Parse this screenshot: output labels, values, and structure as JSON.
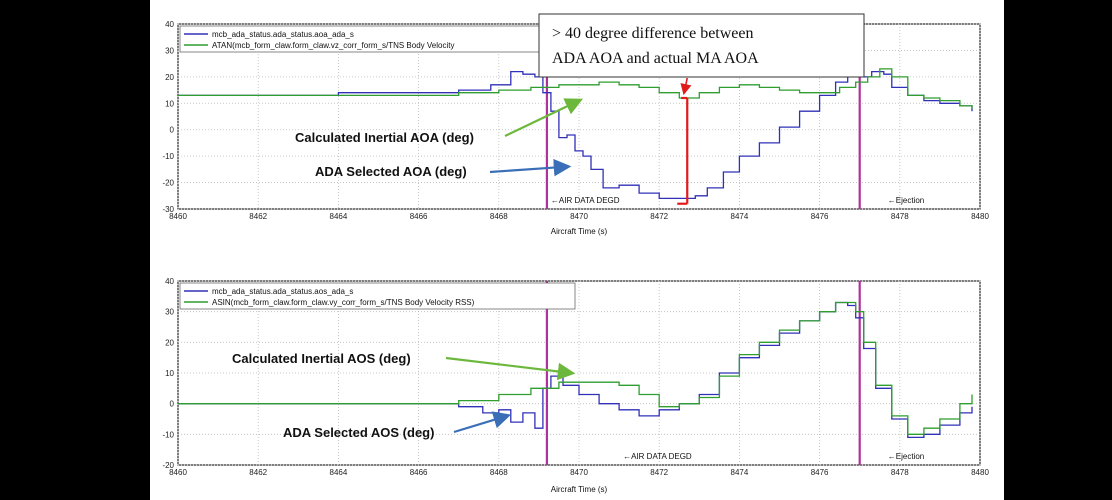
{
  "colors": {
    "ada_series": "#3030b8",
    "inertial_series": "#2f9e2f",
    "event_line": "#b0309e",
    "measure_arrow": "#e01b1b",
    "green_arrow": "#6cb83c",
    "blue_arrow": "#3a6fb8"
  },
  "callout": {
    "line1": "> 40 degree difference between",
    "line2": "ADA AOA and actual MA AOA"
  },
  "chart_data": [
    {
      "type": "line",
      "xlabel": "Aircraft Time (s)",
      "xlim": [
        8460,
        8480
      ],
      "ylim": [
        -30,
        40
      ],
      "x_ticks": [
        "8460",
        "8462",
        "8464",
        "8466",
        "8468",
        "8470",
        "8472",
        "8474",
        "8476",
        "8478",
        "8480"
      ],
      "y_ticks": [
        "40",
        "30",
        "20",
        "10",
        "0",
        "-10",
        "-20",
        "-30"
      ],
      "grid": true,
      "legend_position": "top-left",
      "event_lines": [
        8469.2,
        8477.0
      ],
      "markers": [
        {
          "x": 8469.3,
          "text": "←AIR DATA DEGD"
        },
        {
          "x": 8477.7,
          "text": "←Ejection"
        }
      ],
      "annotations": [
        {
          "text": "Calculated Inertial AOA (deg)",
          "target_x": 8470.0,
          "target_y": 11
        },
        {
          "text": "ADA Selected AOA (deg)",
          "target_x": 8469.7,
          "target_y": -14
        }
      ],
      "difference_marker": {
        "x": 8472.5,
        "y_from": 12,
        "y_to": -28
      },
      "series": [
        {
          "name": "mcb_ada_status.ada_status.aoa_ada_s",
          "x": [
            8460,
            8462,
            8464,
            8466,
            8467,
            8467.8,
            8468.3,
            8468.6,
            8468.9,
            8469.1,
            8469.3,
            8469.5,
            8469.7,
            8469.9,
            8470.1,
            8470.3,
            8470.6,
            8471,
            8471.5,
            8472,
            8472.5,
            8472.9,
            8473.2,
            8473.6,
            8474,
            8474.5,
            8475,
            8475.5,
            8476,
            8476.4,
            8476.7,
            8476.9,
            8477.3,
            8477.6,
            8477.8,
            8478.2,
            8478.6,
            8479,
            8479.5,
            8479.8
          ],
          "y": [
            13,
            13,
            14,
            14,
            15,
            17,
            22,
            21,
            20,
            14,
            7,
            -3,
            -2,
            -8,
            -10,
            -15,
            -22,
            -21,
            -24,
            -26,
            -26,
            -25,
            -22,
            -16,
            -10,
            -5,
            1,
            7,
            13,
            18,
            20,
            20,
            22,
            21,
            16,
            13,
            11,
            10,
            9,
            7
          ]
        },
        {
          "name": "ATAN(mcb_form_claw.form_claw.vz_corr_form_s/TNS Body Velocity",
          "x": [
            8460,
            8462,
            8464,
            8466,
            8467,
            8468,
            8468.8,
            8469.5,
            8470,
            8470.5,
            8471,
            8471.5,
            8472,
            8472.5,
            8473,
            8473.5,
            8474,
            8474.5,
            8475,
            8475.5,
            8476,
            8476.5,
            8476.9,
            8477.2,
            8477.5,
            8477.8,
            8478.2,
            8478.6,
            8479,
            8479.5,
            8479.8
          ],
          "y": [
            13,
            13,
            13,
            13,
            14,
            15,
            16,
            17,
            17,
            18,
            17,
            16,
            14,
            12,
            14,
            16,
            17,
            16,
            15,
            14,
            14,
            16,
            18,
            20,
            23,
            20,
            13,
            12,
            11,
            9,
            8
          ]
        }
      ]
    },
    {
      "type": "line",
      "xlabel": "Aircraft Time (s)",
      "xlim": [
        8460,
        8480
      ],
      "ylim": [
        -20,
        40
      ],
      "x_ticks": [
        "8460",
        "8462",
        "8464",
        "8466",
        "8468",
        "8470",
        "8472",
        "8474",
        "8476",
        "8478",
        "8480"
      ],
      "y_ticks": [
        "40",
        "30",
        "20",
        "10",
        "0",
        "-10",
        "-20"
      ],
      "grid": true,
      "legend_position": "top-left",
      "event_lines": [
        8469.2,
        8477.0
      ],
      "markers": [
        {
          "x": 8471.1,
          "text": "←AIR DATA DEGD"
        },
        {
          "x": 8477.7,
          "text": "←Ejection"
        }
      ],
      "annotations": [
        {
          "text": "Calculated Inertial AOS (deg)",
          "target_x": 8469.8,
          "target_y": 10
        },
        {
          "text": "ADA Selected AOS (deg)",
          "target_x": 8468.2,
          "target_y": -4
        }
      ],
      "series": [
        {
          "name": "mcb_ada_status.ada_status.aos_ada_s",
          "x": [
            8460,
            8462,
            8464,
            8466,
            8467,
            8467.6,
            8468,
            8468.3,
            8468.6,
            8468.9,
            8469.1,
            8469.3,
            8469.6,
            8470,
            8470.5,
            8471,
            8471.5,
            8472,
            8472.5,
            8473,
            8473.5,
            8474,
            8474.5,
            8475,
            8475.5,
            8476,
            8476.4,
            8476.7,
            8476.9,
            8477.1,
            8477.4,
            8477.8,
            8478.2,
            8478.6,
            8479,
            8479.5,
            8479.8
          ],
          "y": [
            0,
            0,
            0,
            0,
            -1,
            -3,
            -2,
            -6,
            -3,
            -8,
            5,
            9,
            6,
            3,
            0,
            -2,
            -4,
            -2,
            0,
            3,
            10,
            15,
            19,
            23,
            27,
            30,
            33,
            32,
            28,
            18,
            5,
            -5,
            -11,
            -10,
            -7,
            -3,
            -1
          ]
        },
        {
          "name": "ASIN(mcb_form_claw.form_claw.vy_corr_form_s/TNS Body Velocity RSS)",
          "x": [
            8460,
            8462,
            8464,
            8466,
            8467,
            8468,
            8468.8,
            8469.5,
            8470,
            8470.6,
            8471,
            8471.5,
            8472,
            8472.5,
            8473,
            8473.5,
            8474,
            8474.5,
            8475,
            8475.5,
            8476,
            8476.4,
            8476.7,
            8476.9,
            8477.1,
            8477.4,
            8477.8,
            8478.2,
            8478.6,
            8479,
            8479.5,
            8479.8
          ],
          "y": [
            0,
            0,
            0,
            0,
            1,
            3,
            5,
            7,
            7,
            7,
            6,
            3,
            -1,
            0,
            2,
            9,
            16,
            20,
            24,
            27,
            30,
            33,
            33,
            30,
            20,
            6,
            -4,
            -10,
            -8,
            -5,
            0,
            3
          ]
        }
      ]
    }
  ]
}
